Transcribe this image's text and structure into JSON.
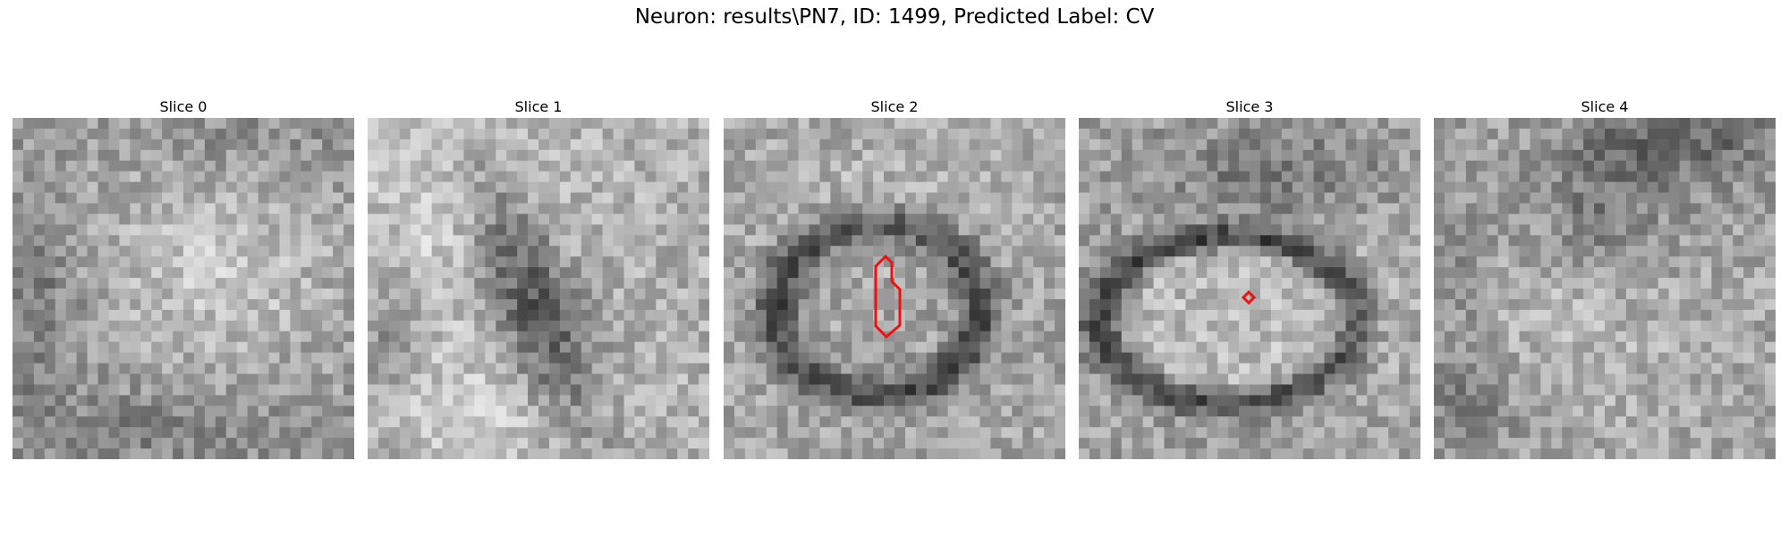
{
  "figure": {
    "title": "Neuron: results\\PN7, ID: 1499, Predicted Label: CV"
  },
  "slices": [
    {
      "label": "Slice 0",
      "pattern": "noisy-bright-center",
      "roi": null
    },
    {
      "label": "Slice 1",
      "pattern": "dark-diagonal-band",
      "roi": null
    },
    {
      "label": "Slice 2",
      "pattern": "dark-ring",
      "roi": "vertical-hexagon"
    },
    {
      "label": "Slice 3",
      "pattern": "bright-ellipse-dark-rim",
      "roi": "small-diamond"
    },
    {
      "label": "Slice 4",
      "pattern": "dark-top-right",
      "roi": null
    }
  ],
  "colors": {
    "roi_outline": "#ee1111",
    "colormap": "gray"
  }
}
